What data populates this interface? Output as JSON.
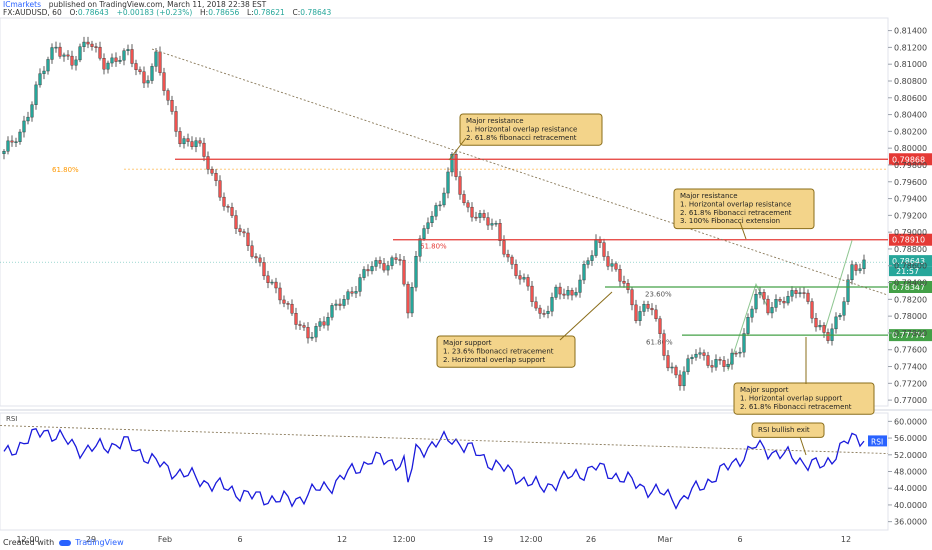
{
  "header": {
    "publisher": "ICmarkets",
    "published_text": "published on TradingView.com, March 11, 2018 22:38 EST",
    "symbol": "FX:AUDUSD, 60",
    "open_label": "O:",
    "open": "0.78643",
    "change": "+0.00183 (+0.23%)",
    "high_label": "H:",
    "high": "0.78656",
    "low_label": "L:",
    "low": "0.78621",
    "close_label": "C:",
    "close": "0.78643"
  },
  "footer": {
    "created_with": "Created with",
    "brand": "TradingView"
  },
  "colors": {
    "bull": "#26a69a",
    "bear": "#ef5350",
    "resistance": "#e53935",
    "support": "#43a047",
    "rsi": "#1a1adb",
    "annotation_bg": "#f3d48a",
    "annotation_border": "#8a6d1a",
    "fib_text": "#ff9800"
  },
  "chart_data": [
    {
      "type": "line",
      "title": "",
      "subtitle": "candlestick price chart (hourly)",
      "ylim": [
        0.7693,
        0.8155
      ],
      "y_ticks": [
        "0.81400",
        "0.81200",
        "0.81000",
        "0.80800",
        "0.80600",
        "0.80400",
        "0.80200",
        "0.80000",
        "0.79800",
        "0.79600",
        "0.79400",
        "0.79200",
        "0.79000",
        "0.78800",
        "0.78600",
        "0.78400",
        "0.78200",
        "0.78000",
        "0.77800",
        "0.77600",
        "0.77400",
        "0.77200",
        "0.77000"
      ],
      "x_ticks": [
        "12:00",
        "29",
        "Feb",
        "6",
        "12",
        "12:00",
        "19",
        "12:00",
        "26",
        "Mar",
        "6",
        "12"
      ],
      "anchors": [
        {
          "x": 0,
          "y": 0.7993
        },
        {
          "x": 4,
          "y": 0.8018
        },
        {
          "x": 9,
          "y": 0.8085
        },
        {
          "x": 13,
          "y": 0.812
        },
        {
          "x": 17,
          "y": 0.8105
        },
        {
          "x": 21,
          "y": 0.8125
        },
        {
          "x": 25,
          "y": 0.8103
        },
        {
          "x": 31,
          "y": 0.811
        },
        {
          "x": 35,
          "y": 0.808
        },
        {
          "x": 38,
          "y": 0.811
        },
        {
          "x": 41,
          "y": 0.805
        },
        {
          "x": 44,
          "y": 0.801
        },
        {
          "x": 48,
          "y": 0.801
        },
        {
          "x": 52,
          "y": 0.7965
        },
        {
          "x": 57,
          "y": 0.792
        },
        {
          "x": 61,
          "y": 0.788
        },
        {
          "x": 66,
          "y": 0.7848
        },
        {
          "x": 71,
          "y": 0.7805
        },
        {
          "x": 76,
          "y": 0.778
        },
        {
          "x": 80,
          "y": 0.779
        },
        {
          "x": 84,
          "y": 0.782
        },
        {
          "x": 88,
          "y": 0.7835
        },
        {
          "x": 92,
          "y": 0.786
        },
        {
          "x": 96,
          "y": 0.7865
        },
        {
          "x": 99,
          "y": 0.787
        },
        {
          "x": 101,
          "y": 0.7795
        },
        {
          "x": 103,
          "y": 0.7875
        },
        {
          "x": 106,
          "y": 0.792
        },
        {
          "x": 109,
          "y": 0.793
        },
        {
          "x": 112,
          "y": 0.7985
        },
        {
          "x": 115,
          "y": 0.7935
        },
        {
          "x": 119,
          "y": 0.7915
        },
        {
          "x": 123,
          "y": 0.7905
        },
        {
          "x": 127,
          "y": 0.786
        },
        {
          "x": 131,
          "y": 0.783
        },
        {
          "x": 134,
          "y": 0.78
        },
        {
          "x": 138,
          "y": 0.783
        },
        {
          "x": 142,
          "y": 0.782
        },
        {
          "x": 145,
          "y": 0.786
        },
        {
          "x": 148,
          "y": 0.789
        },
        {
          "x": 151,
          "y": 0.786
        },
        {
          "x": 155,
          "y": 0.7845
        },
        {
          "x": 158,
          "y": 0.78
        },
        {
          "x": 162,
          "y": 0.781
        },
        {
          "x": 166,
          "y": 0.7745
        },
        {
          "x": 169,
          "y": 0.772
        },
        {
          "x": 173,
          "y": 0.776
        },
        {
          "x": 177,
          "y": 0.7745
        },
        {
          "x": 181,
          "y": 0.774
        },
        {
          "x": 184,
          "y": 0.7765
        },
        {
          "x": 188,
          "y": 0.783
        },
        {
          "x": 191,
          "y": 0.7805
        },
        {
          "x": 195,
          "y": 0.7825
        },
        {
          "x": 199,
          "y": 0.783
        },
        {
          "x": 203,
          "y": 0.779
        },
        {
          "x": 206,
          "y": 0.778
        },
        {
          "x": 209,
          "y": 0.78
        },
        {
          "x": 212,
          "y": 0.7855
        },
        {
          "x": 215,
          "y": 0.7866
        }
      ]
    },
    {
      "type": "line",
      "title": "RSI",
      "ylim": [
        34,
        62
      ],
      "y_ticks": [
        "60.0000",
        "56.0000",
        "52.0000",
        "48.0000",
        "44.0000",
        "40.0000",
        "36.0000"
      ],
      "anchors": [
        {
          "x": 0,
          "y": 52
        },
        {
          "x": 10,
          "y": 58
        },
        {
          "x": 20,
          "y": 53
        },
        {
          "x": 30,
          "y": 55
        },
        {
          "x": 40,
          "y": 49
        },
        {
          "x": 52,
          "y": 45
        },
        {
          "x": 62,
          "y": 42
        },
        {
          "x": 72,
          "y": 41
        },
        {
          "x": 82,
          "y": 45
        },
        {
          "x": 92,
          "y": 51
        },
        {
          "x": 100,
          "y": 50
        },
        {
          "x": 101,
          "y": 45
        },
        {
          "x": 103,
          "y": 53
        },
        {
          "x": 112,
          "y": 56
        },
        {
          "x": 122,
          "y": 50
        },
        {
          "x": 134,
          "y": 44
        },
        {
          "x": 148,
          "y": 49
        },
        {
          "x": 158,
          "y": 45
        },
        {
          "x": 169,
          "y": 41
        },
        {
          "x": 178,
          "y": 47
        },
        {
          "x": 188,
          "y": 54
        },
        {
          "x": 198,
          "y": 51
        },
        {
          "x": 205,
          "y": 49
        },
        {
          "x": 210,
          "y": 55
        },
        {
          "x": 215,
          "y": 56
        }
      ],
      "price_label": "RSI"
    }
  ],
  "levels": {
    "resistance_major": {
      "price": 0.79868,
      "label": "0.79868"
    },
    "resistance_minor": {
      "price": 0.7891,
      "label": "0.78910"
    },
    "support_upper": {
      "price": 0.78347,
      "label": "0.78347"
    },
    "support_lower": {
      "price": 0.77774,
      "label": "0.77774"
    }
  },
  "price_tags": {
    "current": "0.78643",
    "countdown": "21:57"
  },
  "fib_labels": {
    "left": "61.80%",
    "mid": "61.80%",
    "upper_right": "23.60%",
    "lower_right": "61.80%"
  },
  "annotations": {
    "major_resistance_1": {
      "title": "Major resistance",
      "lines": [
        "1. Horizontal overlap resistance",
        "2. 61.8% fibonacci retracement"
      ]
    },
    "major_resistance_2": {
      "title": "Major resistance",
      "lines": [
        "1. Horizontal overlap resistance",
        "2. 61.8% Fibonacci retracement",
        "3. 100% Fibonacci extension"
      ]
    },
    "major_support_1": {
      "title": "Major support",
      "lines": [
        "1. 23.6% fibonacci retracement",
        "2. Horizontal overlap support"
      ]
    },
    "major_support_2": {
      "title": "Major support",
      "lines": [
        "1. Horizontal overlap support",
        "2. 61.8% Fibonacci retracement"
      ]
    },
    "rsi_exit": {
      "title": "RSI bullish exit",
      "lines": []
    }
  }
}
